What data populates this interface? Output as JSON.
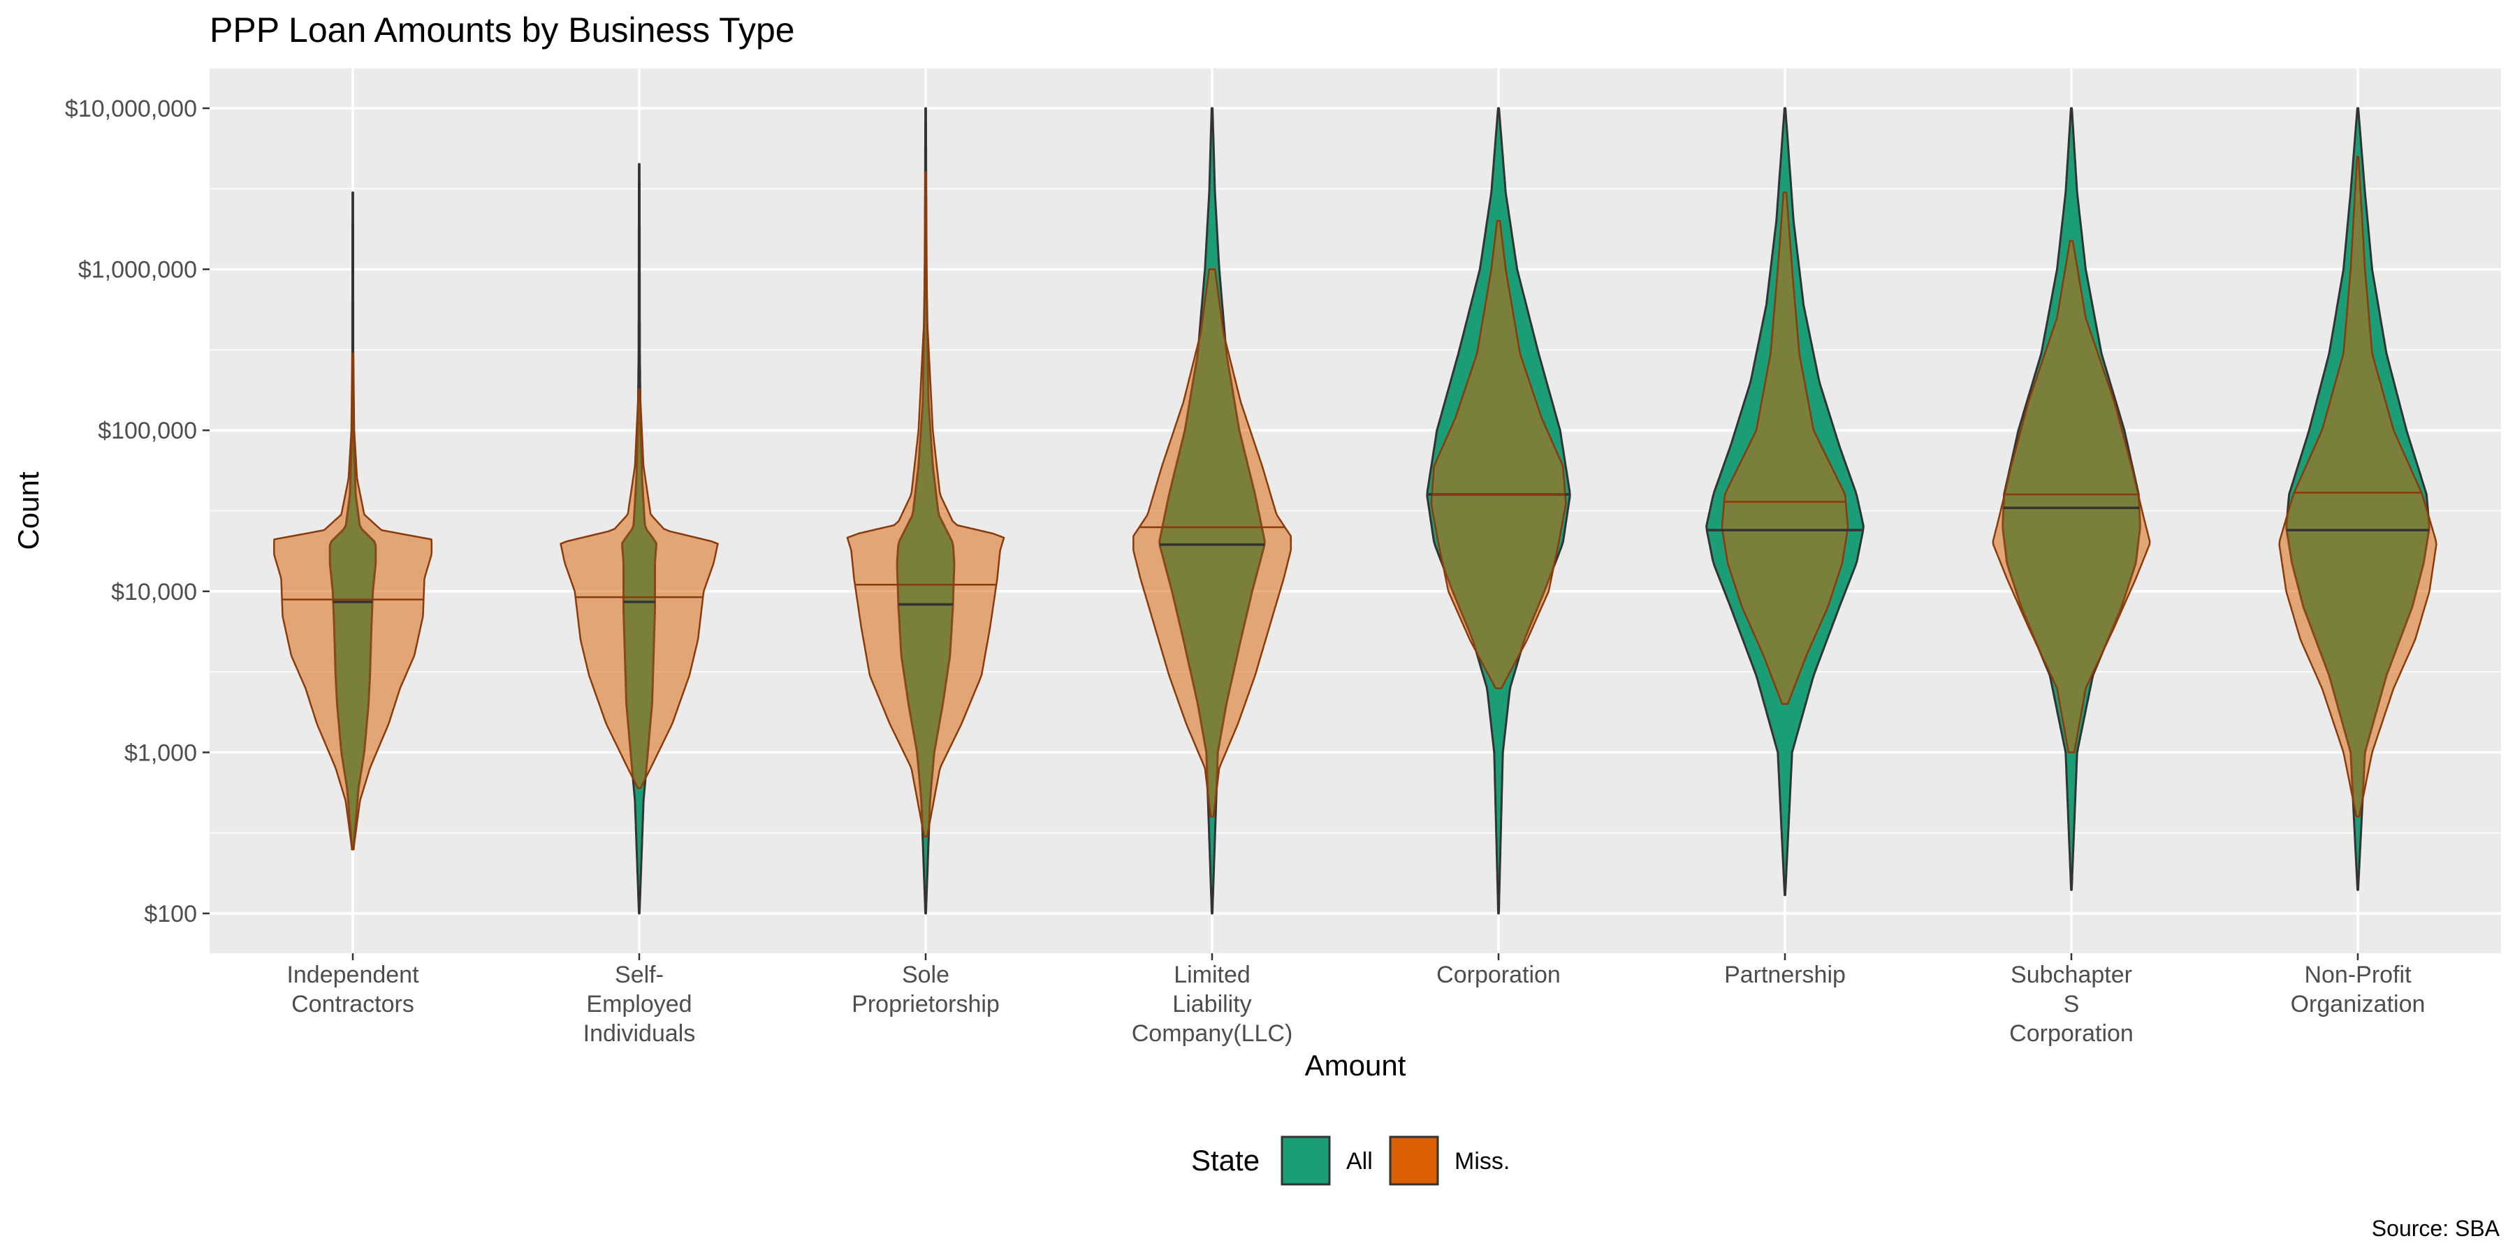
{
  "chart_data": {
    "type": "violin",
    "title": "PPP Loan Amounts by Business Type",
    "xlabel": "Amount",
    "ylabel": "Count",
    "caption": "Source: SBA",
    "y_scale": "log10",
    "ylim": [
      100,
      10000000
    ],
    "y_ticks": [
      100,
      1000,
      10000,
      100000,
      1000000,
      10000000
    ],
    "y_tick_labels": [
      "$100",
      "$1,000",
      "$10,000",
      "$100,000",
      "$1,000,000",
      "$10,000,000"
    ],
    "grid": true,
    "legend": {
      "title": "State",
      "position": "bottom",
      "entries": [
        {
          "label": "All",
          "color": "#1b9e77"
        },
        {
          "label": "Miss.",
          "color": "#d95f02"
        }
      ]
    },
    "categories": [
      {
        "label": [
          "Independent",
          "Contractors"
        ]
      },
      {
        "label": [
          "Self-",
          "Employed",
          "Individuals"
        ]
      },
      {
        "label": [
          "Sole",
          "Proprietorship"
        ]
      },
      {
        "label": [
          "Limited",
          "Liability",
          "Company(LLC)"
        ]
      },
      {
        "label": [
          "Corporation"
        ]
      },
      {
        "label": [
          "Partnership"
        ]
      },
      {
        "label": [
          "Subchapter",
          "S",
          "Corporation"
        ]
      },
      {
        "label": [
          "Non-Profit",
          "Organization"
        ]
      }
    ],
    "series": [
      {
        "name": "All",
        "color": "#1b9e77",
        "medians": [
          8600,
          8600,
          8300,
          19500,
          40000,
          24000,
          33000,
          24000
        ],
        "ranges": [
          [
            250,
            3000000
          ],
          [
            100,
            4500000
          ],
          [
            100,
            10000000
          ],
          [
            100,
            10000000
          ],
          [
            100,
            10000000
          ],
          [
            130,
            10000000
          ],
          [
            140,
            10000000
          ],
          [
            140,
            10000000
          ]
        ],
        "profiles": [
          [
            [
              250,
              0.005
            ],
            [
              600,
              0.04
            ],
            [
              1000,
              0.08
            ],
            [
              2000,
              0.11
            ],
            [
              3000,
              0.12
            ],
            [
              6000,
              0.13
            ],
            [
              10000,
              0.14
            ],
            [
              15000,
              0.16
            ],
            [
              20000,
              0.16
            ],
            [
              25000,
              0.05
            ],
            [
              40000,
              0.02
            ],
            [
              100000,
              0.005
            ],
            [
              300000,
              0.003
            ],
            [
              3000000,
              0.002
            ]
          ],
          [
            [
              100,
              0.002
            ],
            [
              500,
              0.03
            ],
            [
              1000,
              0.06
            ],
            [
              2000,
              0.09
            ],
            [
              4000,
              0.1
            ],
            [
              8000,
              0.11
            ],
            [
              15000,
              0.11
            ],
            [
              20000,
              0.12
            ],
            [
              25000,
              0.04
            ],
            [
              50000,
              0.02
            ],
            [
              100000,
              0.01
            ],
            [
              300000,
              0.004
            ],
            [
              4500000,
              0.002
            ]
          ],
          [
            [
              100,
              0.002
            ],
            [
              500,
              0.03
            ],
            [
              1000,
              0.06
            ],
            [
              2000,
              0.12
            ],
            [
              4000,
              0.17
            ],
            [
              8000,
              0.19
            ],
            [
              15000,
              0.2
            ],
            [
              20000,
              0.19
            ],
            [
              30000,
              0.09
            ],
            [
              60000,
              0.05
            ],
            [
              150000,
              0.02
            ],
            [
              1000000,
              0.005
            ],
            [
              10000000,
              0.002
            ]
          ],
          [
            [
              100,
              0.002
            ],
            [
              1000,
              0.04
            ],
            [
              2000,
              0.1
            ],
            [
              5000,
              0.2
            ],
            [
              10000,
              0.28
            ],
            [
              20000,
              0.37
            ],
            [
              40000,
              0.3
            ],
            [
              100000,
              0.19
            ],
            [
              300000,
              0.1
            ],
            [
              1000000,
              0.05
            ],
            [
              3000000,
              0.02
            ],
            [
              10000000,
              0.003
            ]
          ],
          [
            [
              100,
              0.002
            ],
            [
              1000,
              0.03
            ],
            [
              2500,
              0.08
            ],
            [
              5000,
              0.18
            ],
            [
              10000,
              0.32
            ],
            [
              20000,
              0.45
            ],
            [
              40000,
              0.5
            ],
            [
              100000,
              0.43
            ],
            [
              300000,
              0.28
            ],
            [
              1000000,
              0.13
            ],
            [
              3000000,
              0.05
            ],
            [
              10000000,
              0.003
            ]
          ],
          [
            [
              130,
              0.002
            ],
            [
              1000,
              0.05
            ],
            [
              3000,
              0.2
            ],
            [
              8000,
              0.38
            ],
            [
              15000,
              0.5
            ],
            [
              25000,
              0.55
            ],
            [
              40000,
              0.5
            ],
            [
              80000,
              0.38
            ],
            [
              200000,
              0.24
            ],
            [
              600000,
              0.13
            ],
            [
              2000000,
              0.06
            ],
            [
              10000000,
              0.003
            ]
          ],
          [
            [
              140,
              0.002
            ],
            [
              1000,
              0.04
            ],
            [
              3000,
              0.15
            ],
            [
              8000,
              0.35
            ],
            [
              15000,
              0.45
            ],
            [
              25000,
              0.48
            ],
            [
              40000,
              0.47
            ],
            [
              100000,
              0.37
            ],
            [
              300000,
              0.21
            ],
            [
              1000000,
              0.1
            ],
            [
              3000000,
              0.04
            ],
            [
              10000000,
              0.003
            ]
          ],
          [
            [
              140,
              0.002
            ],
            [
              1000,
              0.05
            ],
            [
              3000,
              0.2
            ],
            [
              8000,
              0.38
            ],
            [
              15000,
              0.46
            ],
            [
              25000,
              0.5
            ],
            [
              40000,
              0.48
            ],
            [
              100000,
              0.34
            ],
            [
              300000,
              0.2
            ],
            [
              1000000,
              0.1
            ],
            [
              3000000,
              0.05
            ],
            [
              10000000,
              0.003
            ]
          ]
        ]
      },
      {
        "name": "Miss.",
        "color": "#d95f02",
        "medians": [
          8900,
          9200,
          11000,
          25000,
          40000,
          36000,
          40000,
          41000
        ],
        "ranges": [
          [
            250,
            300000
          ],
          [
            600,
            180000
          ],
          [
            300,
            4000000
          ],
          [
            400,
            1000000
          ],
          [
            2500,
            2000000
          ],
          [
            2000,
            3000000
          ],
          [
            1000,
            1500000
          ],
          [
            400,
            5000000
          ]
        ],
        "profiles": [
          [
            [
              250,
              0.005
            ],
            [
              500,
              0.05
            ],
            [
              800,
              0.12
            ],
            [
              1500,
              0.25
            ],
            [
              2500,
              0.33
            ],
            [
              4000,
              0.43
            ],
            [
              7000,
              0.49
            ],
            [
              12000,
              0.5
            ],
            [
              17000,
              0.55
            ],
            [
              21000,
              0.55
            ],
            [
              24000,
              0.2
            ],
            [
              30000,
              0.08
            ],
            [
              50000,
              0.03
            ],
            [
              100000,
              0.01
            ],
            [
              300000,
              0.004
            ]
          ],
          [
            [
              600,
              0.01
            ],
            [
              800,
              0.08
            ],
            [
              1500,
              0.23
            ],
            [
              3000,
              0.35
            ],
            [
              5000,
              0.41
            ],
            [
              10000,
              0.45
            ],
            [
              15000,
              0.52
            ],
            [
              20000,
              0.55
            ],
            [
              24000,
              0.18
            ],
            [
              30000,
              0.08
            ],
            [
              60000,
              0.03
            ],
            [
              180000,
              0.005
            ]
          ],
          [
            [
              300,
              0.01
            ],
            [
              800,
              0.1
            ],
            [
              1500,
              0.25
            ],
            [
              3000,
              0.39
            ],
            [
              6000,
              0.45
            ],
            [
              12000,
              0.5
            ],
            [
              18000,
              0.52
            ],
            [
              22000,
              0.55
            ],
            [
              26000,
              0.2
            ],
            [
              40000,
              0.1
            ],
            [
              100000,
              0.05
            ],
            [
              500000,
              0.01
            ],
            [
              4000000,
              0.003
            ]
          ],
          [
            [
              400,
              0.01
            ],
            [
              800,
              0.05
            ],
            [
              1500,
              0.18
            ],
            [
              3000,
              0.3
            ],
            [
              6000,
              0.4
            ],
            [
              12000,
              0.5
            ],
            [
              18000,
              0.55
            ],
            [
              22000,
              0.55
            ],
            [
              30000,
              0.45
            ],
            [
              60000,
              0.35
            ],
            [
              150000,
              0.2
            ],
            [
              400000,
              0.08
            ],
            [
              1000000,
              0.02
            ]
          ],
          [
            [
              2500,
              0.02
            ],
            [
              5000,
              0.2
            ],
            [
              10000,
              0.35
            ],
            [
              20000,
              0.42
            ],
            [
              35000,
              0.47
            ],
            [
              60000,
              0.45
            ],
            [
              120000,
              0.3
            ],
            [
              300000,
              0.15
            ],
            [
              1000000,
              0.05
            ],
            [
              2000000,
              0.01
            ]
          ],
          [
            [
              2000,
              0.02
            ],
            [
              4000,
              0.15
            ],
            [
              8000,
              0.3
            ],
            [
              15000,
              0.4
            ],
            [
              25000,
              0.44
            ],
            [
              40000,
              0.42
            ],
            [
              100000,
              0.2
            ],
            [
              300000,
              0.1
            ],
            [
              1000000,
              0.05
            ],
            [
              3000000,
              0.01
            ]
          ],
          [
            [
              1000,
              0.02
            ],
            [
              2500,
              0.1
            ],
            [
              6000,
              0.3
            ],
            [
              12000,
              0.45
            ],
            [
              20000,
              0.55
            ],
            [
              30000,
              0.5
            ],
            [
              60000,
              0.42
            ],
            [
              150000,
              0.3
            ],
            [
              500000,
              0.1
            ],
            [
              1500000,
              0.01
            ]
          ],
          [
            [
              400,
              0.01
            ],
            [
              1000,
              0.1
            ],
            [
              2500,
              0.25
            ],
            [
              5000,
              0.4
            ],
            [
              10000,
              0.5
            ],
            [
              20000,
              0.55
            ],
            [
              40000,
              0.45
            ],
            [
              100000,
              0.25
            ],
            [
              300000,
              0.1
            ],
            [
              1000000,
              0.05
            ],
            [
              5000000,
              0.005
            ]
          ]
        ]
      }
    ]
  }
}
